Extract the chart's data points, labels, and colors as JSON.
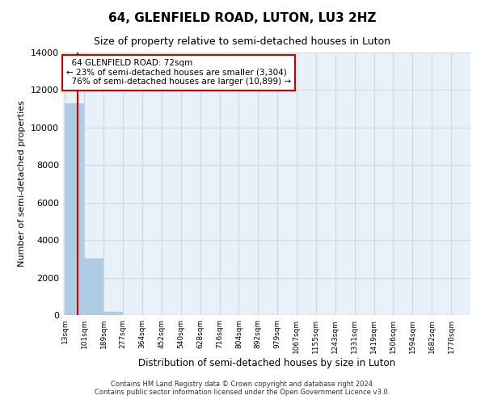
{
  "title": "64, GLENFIELD ROAD, LUTON, LU3 2HZ",
  "subtitle": "Size of property relative to semi-detached houses in Luton",
  "xlabel": "Distribution of semi-detached houses by size in Luton",
  "ylabel": "Number of semi-detached properties",
  "property_size": 72,
  "property_label": "64 GLENFIELD ROAD: 72sqm",
  "pct_smaller": 23,
  "n_smaller": 3304,
  "pct_larger": 76,
  "n_larger": 10899,
  "bin_edges": [
    13,
    101,
    189,
    277,
    364,
    452,
    540,
    628,
    716,
    804,
    892,
    979,
    1067,
    1155,
    1243,
    1331,
    1419,
    1506,
    1594,
    1682,
    1770
  ],
  "bin_labels": [
    "13sqm",
    "101sqm",
    "189sqm",
    "277sqm",
    "364sqm",
    "452sqm",
    "540sqm",
    "628sqm",
    "716sqm",
    "804sqm",
    "892sqm",
    "979sqm",
    "1067sqm",
    "1155sqm",
    "1243sqm",
    "1331sqm",
    "1419sqm",
    "1506sqm",
    "1594sqm",
    "1682sqm",
    "1770sqm"
  ],
  "bar_heights": [
    11300,
    3020,
    190,
    10,
    5,
    3,
    2,
    1,
    1,
    1,
    1,
    1,
    1,
    1,
    0,
    0,
    0,
    0,
    0,
    0
  ],
  "bar_color": "#aecce4",
  "bar_edgecolor": "#aecce4",
  "red_line_color": "#cc0000",
  "annotation_box_edgecolor": "#cc0000",
  "grid_color": "#d0d8e8",
  "bg_color": "#e8f0f8",
  "ylim": [
    0,
    14000
  ],
  "yticks": [
    0,
    2000,
    4000,
    6000,
    8000,
    10000,
    12000,
    14000
  ],
  "footer_line1": "Contains HM Land Registry data © Crown copyright and database right 2024.",
  "footer_line2": "Contains public sector information licensed under the Open Government Licence v3.0."
}
